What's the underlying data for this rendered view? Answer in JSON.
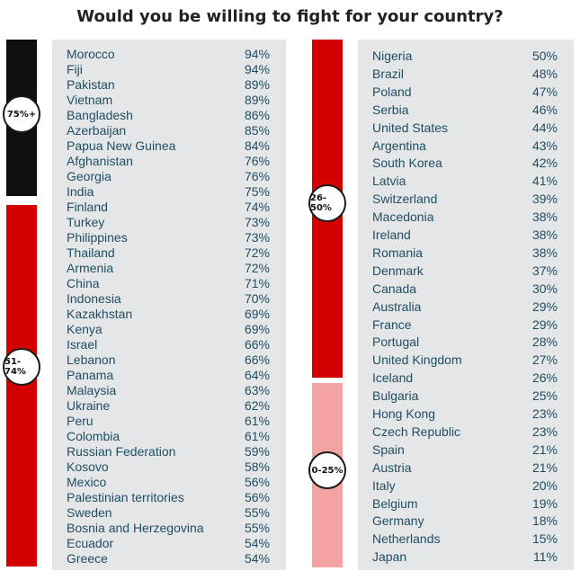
{
  "title": "Would you be willing to fight for your country?",
  "colors": {
    "black": "#0f0f0f",
    "red": "#d40000",
    "pink": "#f4a3a3",
    "panel": "#e5e6e8",
    "text": "#1f4e63"
  },
  "groups": [
    "75%+",
    "51-74%",
    "26-50%",
    "0-25%"
  ],
  "chart_data": {
    "type": "table",
    "title": "Would you be willing to fight for your country?",
    "columns": [
      {
        "rows": [
          {
            "country": "Morocco",
            "value": 94
          },
          {
            "country": "Fiji",
            "value": 94
          },
          {
            "country": "Pakistan",
            "value": 89
          },
          {
            "country": "Vietnam",
            "value": 89
          },
          {
            "country": "Bangladesh",
            "value": 86
          },
          {
            "country": "Azerbaijan",
            "value": 85
          },
          {
            "country": "Papua New Guinea",
            "value": 84
          },
          {
            "country": "Afghanistan",
            "value": 76
          },
          {
            "country": "Georgia",
            "value": 76
          },
          {
            "country": "India",
            "value": 75
          },
          {
            "country": "Finland",
            "value": 74
          },
          {
            "country": "Turkey",
            "value": 73
          },
          {
            "country": "Philippines",
            "value": 73
          },
          {
            "country": "Thailand",
            "value": 72
          },
          {
            "country": "Armenia",
            "value": 72
          },
          {
            "country": "China",
            "value": 71
          },
          {
            "country": "Indonesia",
            "value": 70
          },
          {
            "country": "Kazakhstan",
            "value": 69
          },
          {
            "country": "Kenya",
            "value": 69
          },
          {
            "country": "Israel",
            "value": 66
          },
          {
            "country": "Lebanon",
            "value": 66
          },
          {
            "country": "Panama",
            "value": 64
          },
          {
            "country": "Malaysia",
            "value": 63
          },
          {
            "country": "Ukraine",
            "value": 62
          },
          {
            "country": "Peru",
            "value": 61
          },
          {
            "country": "Colombia",
            "value": 61
          },
          {
            "country": "Russian Federation",
            "value": 59
          },
          {
            "country": "Kosovo",
            "value": 58
          },
          {
            "country": "Mexico",
            "value": 56
          },
          {
            "country": "Palestinian territories",
            "value": 56
          },
          {
            "country": "Sweden",
            "value": 55
          },
          {
            "country": "Bosnia and Herzegovina",
            "value": 55
          },
          {
            "country": "Ecuador",
            "value": 54
          },
          {
            "country": "Greece",
            "value": 54
          }
        ]
      },
      {
        "rows": [
          {
            "country": "Nigeria",
            "value": 50
          },
          {
            "country": "Brazil",
            "value": 48
          },
          {
            "country": "Poland",
            "value": 47
          },
          {
            "country": "Serbia",
            "value": 46
          },
          {
            "country": "United States",
            "value": 44
          },
          {
            "country": "Argentina",
            "value": 43
          },
          {
            "country": "South Korea",
            "value": 42
          },
          {
            "country": "Latvia",
            "value": 41
          },
          {
            "country": "Switzerland",
            "value": 39
          },
          {
            "country": "Macedonia",
            "value": 38
          },
          {
            "country": "Ireland",
            "value": 38
          },
          {
            "country": "Romania",
            "value": 38
          },
          {
            "country": "Denmark",
            "value": 37
          },
          {
            "country": "Canada",
            "value": 30
          },
          {
            "country": "Australia",
            "value": 29
          },
          {
            "country": "France",
            "value": 29
          },
          {
            "country": "Portugal",
            "value": 28
          },
          {
            "country": "United Kingdom",
            "value": 27
          },
          {
            "country": "Iceland",
            "value": 26
          },
          {
            "country": "Bulgaria",
            "value": 25
          },
          {
            "country": "Hong Kong",
            "value": 23
          },
          {
            "country": "Czech Republic",
            "value": 23
          },
          {
            "country": "Spain",
            "value": 21
          },
          {
            "country": "Austria",
            "value": 21
          },
          {
            "country": "Italy",
            "value": 20
          },
          {
            "country": "Belgium",
            "value": 19
          },
          {
            "country": "Germany",
            "value": 18
          },
          {
            "country": "Netherlands",
            "value": 15
          },
          {
            "country": "Japan",
            "value": 11
          }
        ]
      }
    ]
  }
}
